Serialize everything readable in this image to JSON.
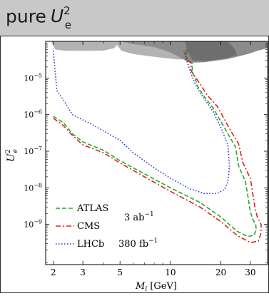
{
  "header": {
    "title_prefix": "pure",
    "title_symbol": "U",
    "title_sup": "2",
    "title_sub": "e"
  },
  "chart_data": {
    "type": "line",
    "title": "pure U_e^2",
    "xlabel": "M_i [GeV]",
    "ylabel": "U_e^2",
    "xscale": "log",
    "yscale": "log",
    "xlim": [
      1.8,
      38
    ],
    "ylim": [
      8e-11,
      0.0001
    ],
    "x_ticks": [
      2,
      3,
      5,
      10,
      20,
      30
    ],
    "x_tick_labels": [
      "2",
      "3",
      "5",
      "10",
      "20",
      "30"
    ],
    "y_ticks": [
      1e-09,
      1e-08,
      1e-07,
      1e-06,
      1e-05
    ],
    "y_tick_labels": [
      {
        "base": "10",
        "exp": "−9"
      },
      {
        "base": "10",
        "exp": "−8"
      },
      {
        "base": "10",
        "exp": "−7"
      },
      {
        "base": "10",
        "exp": "−6"
      },
      {
        "base": "10",
        "exp": "−5"
      }
    ],
    "legend": {
      "placement": "bottom-left",
      "entries": [
        {
          "label": "ATLAS",
          "style": "dashed"
        },
        {
          "label": "CMS",
          "style": "dashdot"
        },
        {
          "label": "LHCb",
          "style": "dotted"
        }
      ],
      "annotations": [
        {
          "base": "3 ab",
          "exp": "−1"
        },
        {
          "base": "380 fb",
          "exp": "−1"
        }
      ]
    },
    "series": [
      {
        "name": "ATLAS",
        "color": "#22aa22",
        "style": "dashed",
        "points": [
          [
            2.0,
            9e-07
          ],
          [
            2.3,
            6e-07
          ],
          [
            2.6,
            3e-07
          ],
          [
            3.0,
            1.8e-07
          ],
          [
            4.0,
            1.05e-07
          ],
          [
            5.0,
            5.5e-08
          ],
          [
            7.0,
            2.4e-08
          ],
          [
            10.0,
            1e-08
          ],
          [
            15.0,
            4e-09
          ],
          [
            20.0,
            1.6e-09
          ],
          [
            25.0,
            6.5e-10
          ],
          [
            29.0,
            4.7e-10
          ],
          [
            31.5,
            5e-10
          ],
          [
            32.5,
            7e-10
          ],
          [
            32.3,
            1e-09
          ],
          [
            31.0,
            1.4e-09
          ],
          [
            30.0,
            2.2e-09
          ],
          [
            29.0,
            6e-09
          ],
          [
            28.0,
            1.5e-08
          ],
          [
            25.5,
            4e-08
          ],
          [
            24.5,
            1.3e-07
          ],
          [
            22.0,
            3e-07
          ],
          [
            18.0,
            1.5e-06
          ],
          [
            16.0,
            3e-06
          ],
          [
            14.5,
            6e-06
          ],
          [
            14.0,
            1e-05
          ],
          [
            13.5,
            1.5e-05
          ],
          [
            13.5,
            2.5e-05
          ],
          [
            12.6,
            3e-05
          ],
          [
            12.5,
            6e-05
          ]
        ]
      },
      {
        "name": "CMS",
        "color": "#dd2222",
        "style": "dashdot",
        "points": [
          [
            2.0,
            8e-07
          ],
          [
            2.3,
            5e-07
          ],
          [
            2.6,
            2.7e-07
          ],
          [
            3.0,
            1.5e-07
          ],
          [
            4.0,
            9e-08
          ],
          [
            5.0,
            4.8e-08
          ],
          [
            7.0,
            2e-08
          ],
          [
            10.0,
            8e-09
          ],
          [
            15.0,
            3e-09
          ],
          [
            20.0,
            1.2e-09
          ],
          [
            25.0,
            5e-10
          ],
          [
            30.0,
            3.2e-10
          ],
          [
            33.5,
            3.5e-10
          ],
          [
            34.8,
            6e-10
          ],
          [
            34.8,
            1e-09
          ],
          [
            33.0,
            1.6e-09
          ],
          [
            32.0,
            2.8e-09
          ],
          [
            31.0,
            7e-09
          ],
          [
            30.0,
            1.8e-08
          ],
          [
            27.0,
            5e-08
          ],
          [
            25.5,
            1.6e-07
          ],
          [
            23.0,
            3.5e-07
          ],
          [
            19.0,
            1.7e-06
          ],
          [
            16.5,
            3.5e-06
          ],
          [
            15.0,
            7e-06
          ],
          [
            14.0,
            1.1e-05
          ],
          [
            13.3,
            1.6e-05
          ],
          [
            13.3,
            2.6e-05
          ],
          [
            12.5,
            3.2e-05
          ],
          [
            12.3,
            6.5e-05
          ]
        ]
      },
      {
        "name": "LHCb",
        "color": "#2233cc",
        "style": "dotted",
        "points": [
          [
            2.0,
            5.5e-05
          ],
          [
            2.1,
            4.5e-06
          ],
          [
            2.3,
            2.5e-06
          ],
          [
            2.6,
            1e-06
          ],
          [
            3.5,
            5e-07
          ],
          [
            5.0,
            2e-07
          ],
          [
            6.0,
            9e-08
          ],
          [
            8.0,
            3.5e-08
          ],
          [
            10.0,
            1.8e-08
          ],
          [
            13.0,
            9.5e-09
          ],
          [
            16.0,
            7e-09
          ],
          [
            19.0,
            7e-09
          ],
          [
            21.0,
            9e-09
          ],
          [
            22.0,
            1.4e-08
          ],
          [
            22.5,
            4e-08
          ],
          [
            22.0,
            1.5e-07
          ],
          [
            20.0,
            4.5e-07
          ],
          [
            18.0,
            1.2e-06
          ],
          [
            15.0,
            4e-06
          ],
          [
            14.0,
            7e-06
          ],
          [
            13.3,
            1.3e-05
          ],
          [
            12.5,
            3e-05
          ],
          [
            12.0,
            5.5e-05
          ]
        ]
      }
    ],
    "excluded_regions": [
      {
        "shade": "#b3b3b3",
        "points": [
          [
            1.95,
            9.8e-05
          ],
          [
            2.05,
            6e-05
          ],
          [
            2.3,
            5.6e-05
          ],
          [
            3.0,
            5.5e-05
          ],
          [
            4.0,
            5.6e-05
          ],
          [
            4.6,
            6.5e-05
          ],
          [
            4.8,
            8e-05
          ],
          [
            5.1,
            5.5e-05
          ],
          [
            6.0,
            4.5e-05
          ],
          [
            8.0,
            3.8e-05
          ],
          [
            11.0,
            3.2e-05
          ],
          [
            15.0,
            3.3e-05
          ],
          [
            22.0,
            3.8e-05
          ],
          [
            30.0,
            5e-05
          ],
          [
            36.0,
            6.5e-05
          ],
          [
            38.0,
            6.8e-05
          ],
          [
            38.0,
            0.0001
          ],
          [
            1.95,
            0.0001
          ]
        ]
      },
      {
        "shade": "#8c8c8c",
        "points": [
          [
            5.0,
            0.0001
          ],
          [
            6.0,
            8.5e-05
          ],
          [
            8.0,
            7e-05
          ],
          [
            10.0,
            5e-05
          ],
          [
            12.0,
            3.2e-05
          ],
          [
            13.0,
            2.6e-05
          ],
          [
            16.0,
            2.7e-05
          ],
          [
            22.0,
            3.3e-05
          ],
          [
            29.0,
            4.5e-05
          ],
          [
            33.0,
            5.5e-05
          ],
          [
            38.0,
            6.5e-05
          ],
          [
            38.0,
            0.0001
          ]
        ]
      },
      {
        "shade": "#6e6e6e",
        "points": [
          [
            12.2,
            0.0001
          ],
          [
            12.6,
            5.5e-05
          ],
          [
            13.5,
            3e-05
          ],
          [
            16.0,
            2.9e-05
          ],
          [
            21.0,
            3.4e-05
          ],
          [
            25.0,
            4.2e-05
          ],
          [
            24.0,
            6.5e-05
          ],
          [
            22.0,
            0.0001
          ]
        ]
      }
    ]
  }
}
